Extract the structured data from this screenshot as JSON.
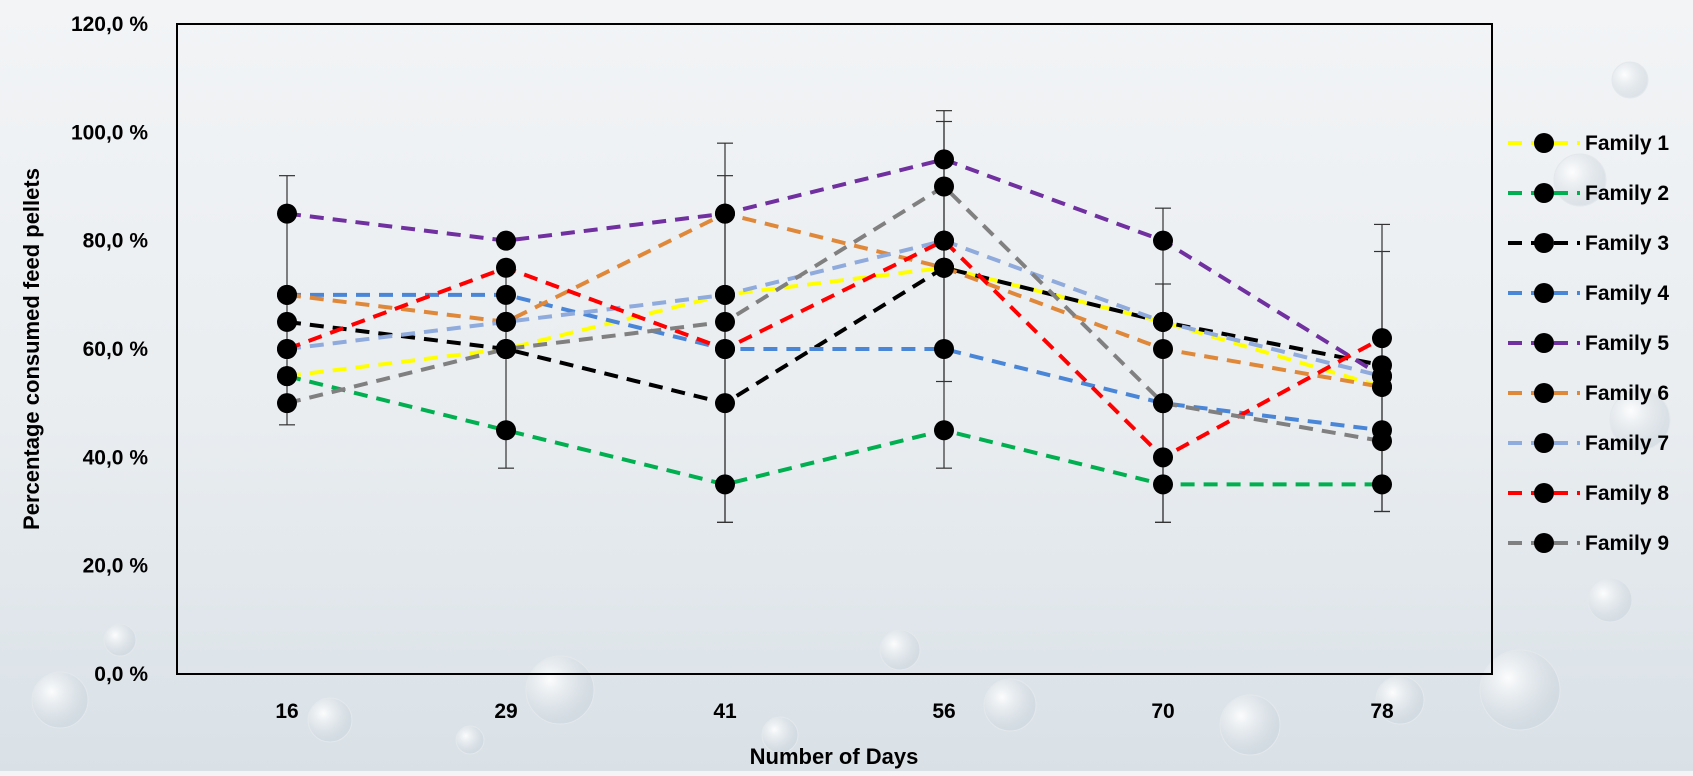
{
  "chart_data": {
    "type": "line",
    "xlabel": "Number of Days",
    "ylabel": "Percentage consumed feed pellets",
    "categories": [
      "16",
      "29",
      "41",
      "56",
      "70",
      "78"
    ],
    "y_ticks": [
      "0,0 %",
      "20,0 %",
      "40,0 %",
      "60,0 %",
      "80,0 %",
      "100,0 %",
      "120,0 %"
    ],
    "ylim": [
      0,
      120
    ],
    "grid": false,
    "legend": "right",
    "series": [
      {
        "name": "Family 1",
        "color": "#ffff00",
        "values": [
          55,
          60,
          70,
          75,
          65,
          53
        ]
      },
      {
        "name": "Family 2",
        "color": "#00b050",
        "values": [
          55,
          45,
          35,
          45,
          35,
          35
        ]
      },
      {
        "name": "Family 3",
        "color": "#000000",
        "values": [
          65,
          60,
          50,
          75,
          65,
          57
        ]
      },
      {
        "name": "Family 4",
        "color": "#4a86d8",
        "values": [
          70,
          70,
          60,
          60,
          50,
          45
        ]
      },
      {
        "name": "Family 5",
        "color": "#7030a0",
        "values": [
          85,
          80,
          85,
          95,
          80,
          55
        ]
      },
      {
        "name": "Family 6",
        "color": "#e0883a",
        "values": [
          70,
          65,
          85,
          75,
          60,
          53
        ]
      },
      {
        "name": "Family 7",
        "color": "#8faadc",
        "values": [
          60,
          65,
          70,
          80,
          65,
          55
        ]
      },
      {
        "name": "Family 8",
        "color": "#ff0000",
        "values": [
          60,
          75,
          60,
          80,
          40,
          62
        ]
      },
      {
        "name": "Family 9",
        "color": "#808080",
        "values": [
          50,
          60,
          65,
          90,
          50,
          43
        ]
      }
    ],
    "error_bars": [
      {
        "x": "16",
        "low": 46,
        "high": 92
      },
      {
        "x": "29",
        "low": 38,
        "high": 75
      },
      {
        "x": "41",
        "low": 28,
        "high": 98
      },
      {
        "x": "41",
        "low": 28,
        "high": 92
      },
      {
        "x": "56",
        "low": 38,
        "high": 104
      },
      {
        "x": "56",
        "low": 54,
        "high": 102
      },
      {
        "x": "70",
        "low": 28,
        "high": 86
      },
      {
        "x": "70",
        "low": 28,
        "high": 72
      },
      {
        "x": "78",
        "low": 30,
        "high": 83
      },
      {
        "x": "78",
        "low": 30,
        "high": 78
      }
    ]
  }
}
